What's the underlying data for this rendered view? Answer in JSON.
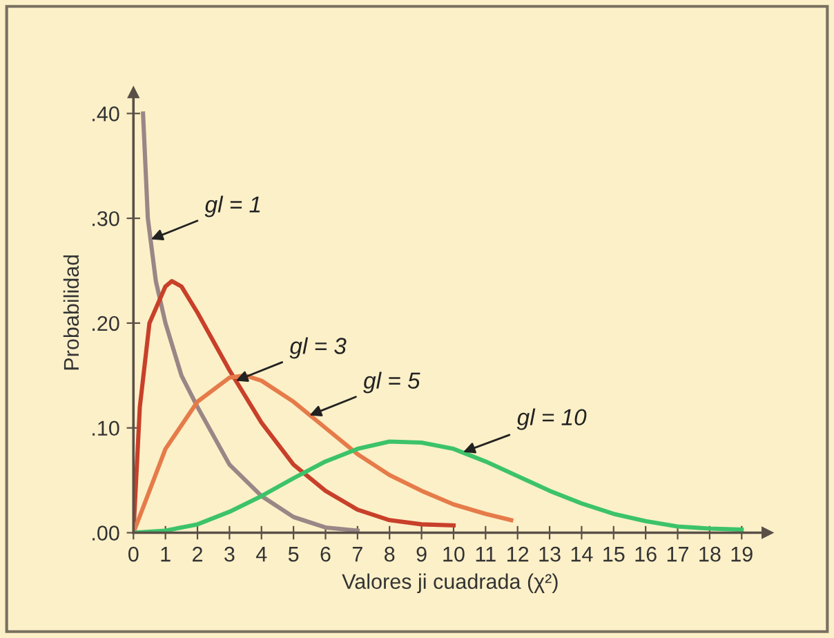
{
  "chart_data": {
    "type": "line",
    "xlabel": "Valores ji cuadrada (χ²)",
    "ylabel": "Probabilidad",
    "xlim": [
      0,
      19.8
    ],
    "ylim": [
      0,
      0.42
    ],
    "xticks": [
      0,
      1,
      2,
      3,
      4,
      5,
      6,
      7,
      8,
      9,
      10,
      11,
      12,
      13,
      14,
      15,
      16,
      17,
      18,
      19
    ],
    "yticks": [
      {
        "value": 0,
        "label": ".00"
      },
      {
        "value": 0.1,
        "label": ".10"
      },
      {
        "value": 0.2,
        "label": ".20"
      },
      {
        "value": 0.3,
        "label": ".30"
      },
      {
        "value": 0.4,
        "label": ".40"
      }
    ],
    "grid": false,
    "legend": false,
    "marker": "none",
    "line_style": "solid",
    "series": [
      {
        "color": "#9a8686",
        "x": [
          0.3,
          0.45,
          0.7,
          1,
          1.5,
          2,
          3,
          4,
          5,
          6,
          7
        ],
        "values": [
          0.4,
          0.3,
          0.24,
          0.2,
          0.15,
          0.12,
          0.065,
          0.035,
          0.015,
          0.005,
          0.002
        ]
      },
      {
        "color": "#c8402a",
        "x": [
          0,
          0.2,
          0.5,
          1,
          1.2,
          1.5,
          2,
          3,
          4,
          5,
          6,
          7,
          8,
          9,
          10
        ],
        "values": [
          0,
          0.12,
          0.2,
          0.235,
          0.24,
          0.235,
          0.21,
          0.155,
          0.105,
          0.065,
          0.04,
          0.022,
          0.012,
          0.008,
          0.007
        ]
      },
      {
        "color": "#e67b4a",
        "x": [
          0,
          0.5,
          1,
          2,
          3,
          3.5,
          4,
          5,
          6,
          7,
          8,
          9,
          10,
          11,
          11.8
        ],
        "values": [
          0,
          0.04,
          0.08,
          0.125,
          0.148,
          0.15,
          0.145,
          0.125,
          0.1,
          0.075,
          0.055,
          0.04,
          0.027,
          0.018,
          0.012
        ]
      },
      {
        "color": "#3cc36a",
        "x": [
          0,
          1,
          2,
          3,
          4,
          5,
          6,
          7,
          8,
          9,
          10,
          11,
          12,
          13,
          14,
          15,
          16,
          17,
          18,
          19
        ],
        "values": [
          0,
          0.002,
          0.008,
          0.02,
          0.035,
          0.052,
          0.068,
          0.08,
          0.087,
          0.086,
          0.08,
          0.068,
          0.054,
          0.04,
          0.028,
          0.018,
          0.011,
          0.006,
          0.004,
          0.003
        ]
      }
    ],
    "annotations": [
      {
        "text": "gl = 1",
        "x": 0.55,
        "y": 0.28
      },
      {
        "text": "gl = 3",
        "x": 3.2,
        "y": 0.145
      },
      {
        "text": "gl = 5",
        "x": 5.5,
        "y": 0.112
      },
      {
        "text": "gl = 10",
        "x": 10.3,
        "y": 0.077
      }
    ]
  }
}
